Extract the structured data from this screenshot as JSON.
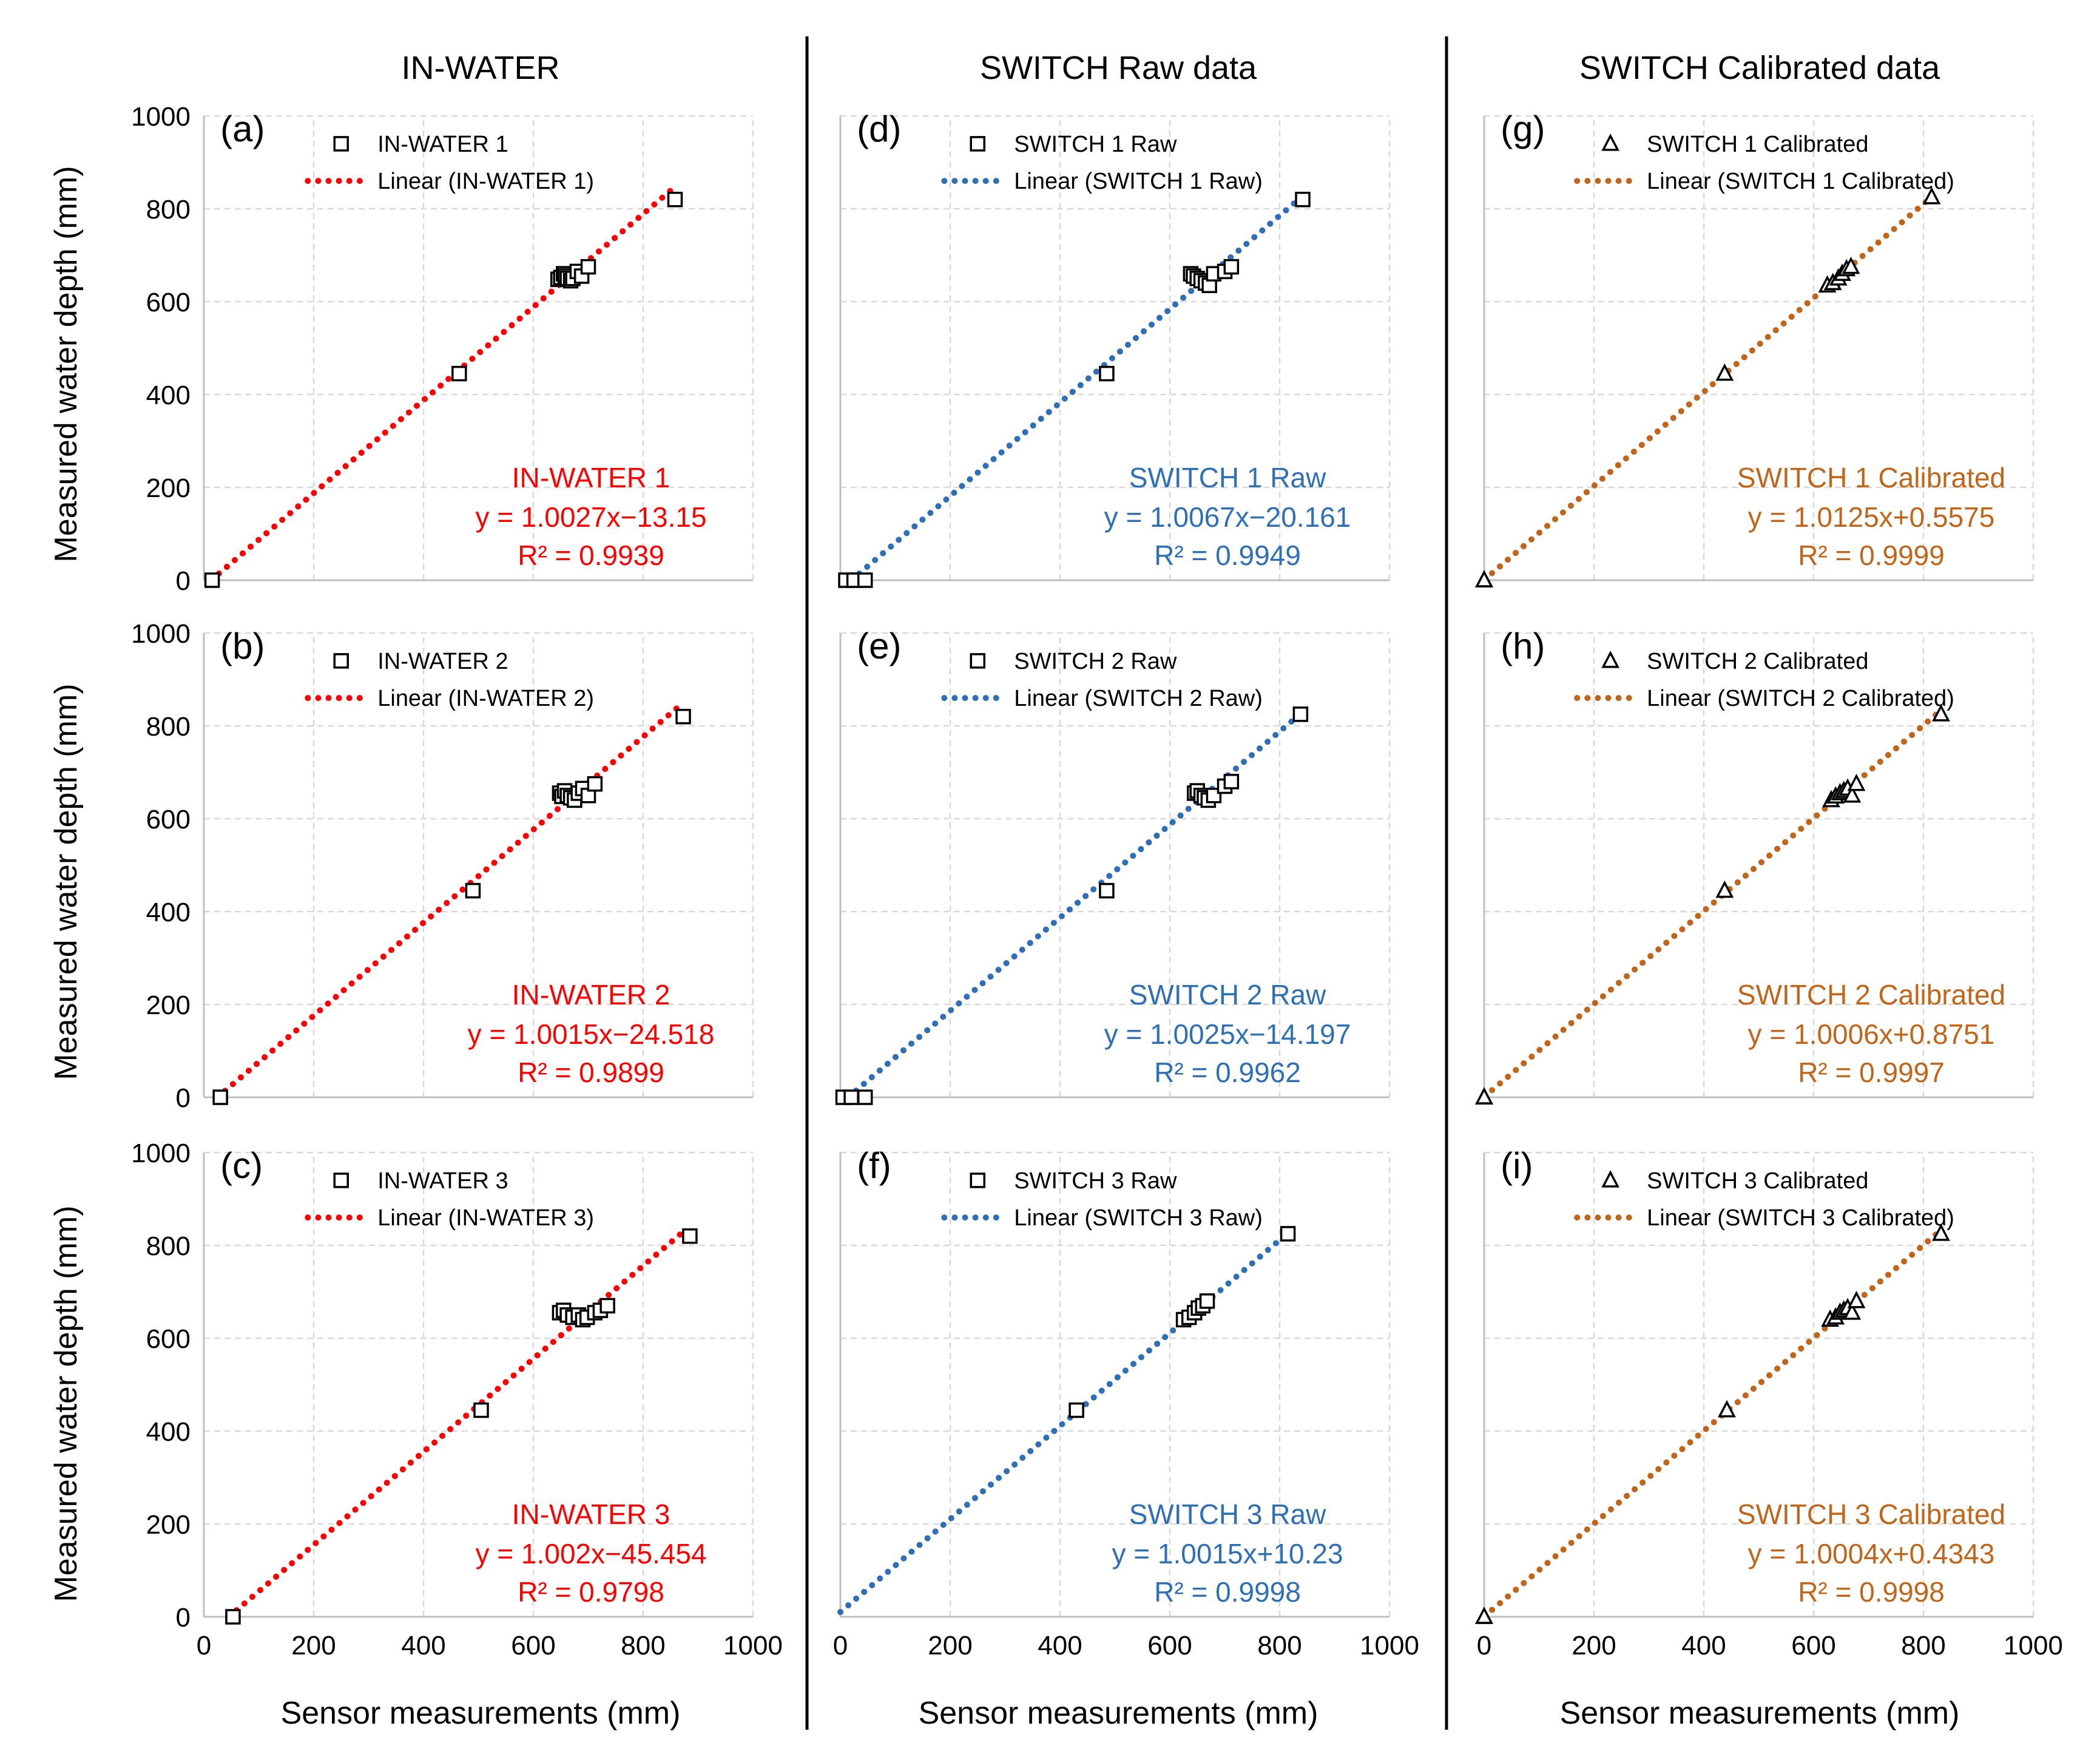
{
  "figure": {
    "column_titles": [
      "IN-WATER",
      "SWITCH Raw data",
      "SWITCH Calibrated data"
    ],
    "y_axis_label": "Measured water depth (mm)",
    "x_axis_label": "Sensor measurements (mm)",
    "tick_values": [
      "0",
      "200",
      "400",
      "600",
      "800",
      "1000"
    ]
  },
  "chart_data": [
    {
      "id": "a",
      "type": "scatter",
      "panel_label": "(a)",
      "xlim": [
        0,
        1000
      ],
      "ylim": [
        0,
        1000
      ],
      "grid": true,
      "marker": "square",
      "color": "#ff0000",
      "series_name": "IN-WATER 1",
      "trend_name": "Linear (IN-WATER 1)",
      "eq_title": "IN-WATER 1",
      "eq_text": "y = 1.0027x−13.15",
      "r2_text": "R² = 0.9939",
      "slope": 1.0027,
      "intercept": -13.15,
      "trend_x": [
        13,
        858
      ],
      "points": [
        [
          15,
          0
        ],
        [
          465,
          445
        ],
        [
          645,
          648
        ],
        [
          650,
          652
        ],
        [
          655,
          660
        ],
        [
          658,
          655
        ],
        [
          662,
          650
        ],
        [
          668,
          645
        ],
        [
          672,
          650
        ],
        [
          680,
          665
        ],
        [
          688,
          655
        ],
        [
          700,
          675
        ],
        [
          858,
          820
        ]
      ]
    },
    {
      "id": "b",
      "type": "scatter",
      "panel_label": "(b)",
      "xlim": [
        0,
        1000
      ],
      "ylim": [
        0,
        1000
      ],
      "grid": true,
      "marker": "square",
      "color": "#ff0000",
      "series_name": "IN-WATER 2",
      "trend_name": "Linear (IN-WATER 2)",
      "eq_title": "IN-WATER 2",
      "eq_text": "y = 1.0015x−24.518",
      "r2_text": "R² = 0.9899",
      "slope": 1.0015,
      "intercept": -24.518,
      "trend_x": [
        24,
        872
      ],
      "points": [
        [
          30,
          0
        ],
        [
          490,
          445
        ],
        [
          648,
          655
        ],
        [
          652,
          648
        ],
        [
          657,
          660
        ],
        [
          662,
          650
        ],
        [
          668,
          645
        ],
        [
          675,
          640
        ],
        [
          682,
          655
        ],
        [
          690,
          665
        ],
        [
          700,
          650
        ],
        [
          712,
          675
        ],
        [
          873,
          820
        ]
      ]
    },
    {
      "id": "c",
      "type": "scatter",
      "panel_label": "(c)",
      "xlim": [
        0,
        1000
      ],
      "ylim": [
        0,
        1000
      ],
      "grid": true,
      "marker": "square",
      "color": "#ff0000",
      "series_name": "IN-WATER 3",
      "trend_name": "Linear (IN-WATER 3)",
      "eq_title": "IN-WATER 3",
      "eq_text": "y = 1.002x−45.454",
      "r2_text": "R² = 0.9798",
      "slope": 1.002,
      "intercept": -45.454,
      "trend_x": [
        45,
        876
      ],
      "points": [
        [
          53,
          0
        ],
        [
          505,
          445
        ],
        [
          648,
          655
        ],
        [
          655,
          660
        ],
        [
          662,
          650
        ],
        [
          672,
          645
        ],
        [
          682,
          650
        ],
        [
          690,
          640
        ],
        [
          698,
          645
        ],
        [
          712,
          655
        ],
        [
          722,
          660
        ],
        [
          735,
          670
        ],
        [
          885,
          820
        ]
      ]
    },
    {
      "id": "d",
      "type": "scatter",
      "panel_label": "(d)",
      "xlim": [
        0,
        1000
      ],
      "ylim": [
        0,
        1000
      ],
      "grid": true,
      "marker": "square",
      "color": "#2e6fb5",
      "series_name": "SWITCH 1 Raw",
      "trend_name": "Linear (SWITCH 1 Raw)",
      "eq_title": "SWITCH 1 Raw",
      "eq_text": "y = 1.0067x−20.161",
      "r2_text": "R² = 0.9949",
      "slope": 1.0067,
      "intercept": -20.161,
      "trend_x": [
        20,
        835
      ],
      "points": [
        [
          10,
          0
        ],
        [
          25,
          0
        ],
        [
          45,
          0
        ],
        [
          485,
          445
        ],
        [
          638,
          660
        ],
        [
          643,
          655
        ],
        [
          650,
          650
        ],
        [
          657,
          645
        ],
        [
          665,
          640
        ],
        [
          672,
          635
        ],
        [
          680,
          660
        ],
        [
          700,
          665
        ],
        [
          712,
          675
        ],
        [
          842,
          820
        ]
      ]
    },
    {
      "id": "e",
      "type": "scatter",
      "panel_label": "(e)",
      "xlim": [
        0,
        1000
      ],
      "ylim": [
        0,
        1000
      ],
      "grid": true,
      "marker": "square",
      "color": "#2e6fb5",
      "series_name": "SWITCH 2 Raw",
      "trend_name": "Linear (SWITCH 2 Raw)",
      "eq_title": "SWITCH 2 Raw",
      "eq_text": "y = 1.0025x−14.197",
      "r2_text": "R² = 0.9962",
      "slope": 1.0025,
      "intercept": -14.197,
      "trend_x": [
        14,
        832
      ],
      "points": [
        [
          5,
          0
        ],
        [
          20,
          0
        ],
        [
          45,
          0
        ],
        [
          485,
          445
        ],
        [
          645,
          655
        ],
        [
          650,
          660
        ],
        [
          657,
          650
        ],
        [
          663,
          645
        ],
        [
          670,
          640
        ],
        [
          680,
          650
        ],
        [
          700,
          670
        ],
        [
          712,
          680
        ],
        [
          838,
          825
        ]
      ]
    },
    {
      "id": "f",
      "type": "scatter",
      "panel_label": "(f)",
      "xlim": [
        0,
        1000
      ],
      "ylim": [
        0,
        1000
      ],
      "grid": true,
      "marker": "square",
      "color": "#2e6fb5",
      "series_name": "SWITCH 3 Raw",
      "trend_name": "Linear (SWITCH 3 Raw)",
      "eq_title": "SWITCH 3 Raw",
      "eq_text": "y = 1.0015x+10.23",
      "r2_text": "R² = 0.9998",
      "slope": 1.0015,
      "intercept": 10.23,
      "trend_x": [
        0,
        815
      ],
      "points": [
        [
          430,
          445
        ],
        [
          625,
          640
        ],
        [
          635,
          645
        ],
        [
          645,
          655
        ],
        [
          652,
          665
        ],
        [
          660,
          670
        ],
        [
          668,
          680
        ],
        [
          815,
          825
        ]
      ]
    },
    {
      "id": "g",
      "type": "scatter",
      "panel_label": "(g)",
      "xlim": [
        0,
        1000
      ],
      "ylim": [
        0,
        1000
      ],
      "grid": true,
      "marker": "triangle",
      "color": "#c0651a",
      "series_name": "SWITCH 1 Calibrated",
      "trend_name": "Linear (SWITCH 1 Calibrated)",
      "eq_title": "SWITCH 1 Calibrated",
      "eq_text": "y = 1.0125x+0.5575",
      "r2_text": "R² = 0.9999",
      "slope": 1.0125,
      "intercept": 0.5575,
      "trend_x": [
        0,
        815
      ],
      "points": [
        [
          0,
          0
        ],
        [
          0,
          0
        ],
        [
          0,
          0
        ],
        [
          438,
          445
        ],
        [
          625,
          635
        ],
        [
          635,
          640
        ],
        [
          645,
          650
        ],
        [
          652,
          660
        ],
        [
          660,
          670
        ],
        [
          668,
          675
        ],
        [
          815,
          825
        ]
      ]
    },
    {
      "id": "h",
      "type": "scatter",
      "panel_label": "(h)",
      "xlim": [
        0,
        1000
      ],
      "ylim": [
        0,
        1000
      ],
      "grid": true,
      "marker": "triangle",
      "color": "#c0651a",
      "series_name": "SWITCH 2 Calibrated",
      "trend_name": "Linear (SWITCH 2 Calibrated)",
      "eq_title": "SWITCH 2 Calibrated",
      "eq_text": "y = 1.0006x+0.8751",
      "r2_text": "R² = 0.9997",
      "slope": 1.0006,
      "intercept": 0.8751,
      "trend_x": [
        0,
        830
      ],
      "points": [
        [
          0,
          0
        ],
        [
          0,
          0
        ],
        [
          0,
          0
        ],
        [
          438,
          445
        ],
        [
          632,
          640
        ],
        [
          640,
          648
        ],
        [
          648,
          655
        ],
        [
          655,
          660
        ],
        [
          662,
          665
        ],
        [
          670,
          650
        ],
        [
          678,
          675
        ],
        [
          832,
          825
        ]
      ]
    },
    {
      "id": "i",
      "type": "scatter",
      "panel_label": "(i)",
      "xlim": [
        0,
        1000
      ],
      "ylim": [
        0,
        1000
      ],
      "grid": true,
      "marker": "triangle",
      "color": "#c0651a",
      "series_name": "SWITCH 3 Calibrated",
      "trend_name": "Linear (SWITCH 3 Calibrated)",
      "eq_title": "SWITCH 3 Calibrated",
      "eq_text": "y = 1.0004x+0.4343",
      "r2_text": "R² = 0.9998",
      "slope": 1.0004,
      "intercept": 0.4343,
      "trend_x": [
        0,
        830
      ],
      "points": [
        [
          0,
          0
        ],
        [
          0,
          0
        ],
        [
          442,
          445
        ],
        [
          630,
          640
        ],
        [
          640,
          645
        ],
        [
          648,
          655
        ],
        [
          655,
          660
        ],
        [
          662,
          665
        ],
        [
          670,
          655
        ],
        [
          678,
          680
        ],
        [
          832,
          825
        ]
      ]
    }
  ]
}
